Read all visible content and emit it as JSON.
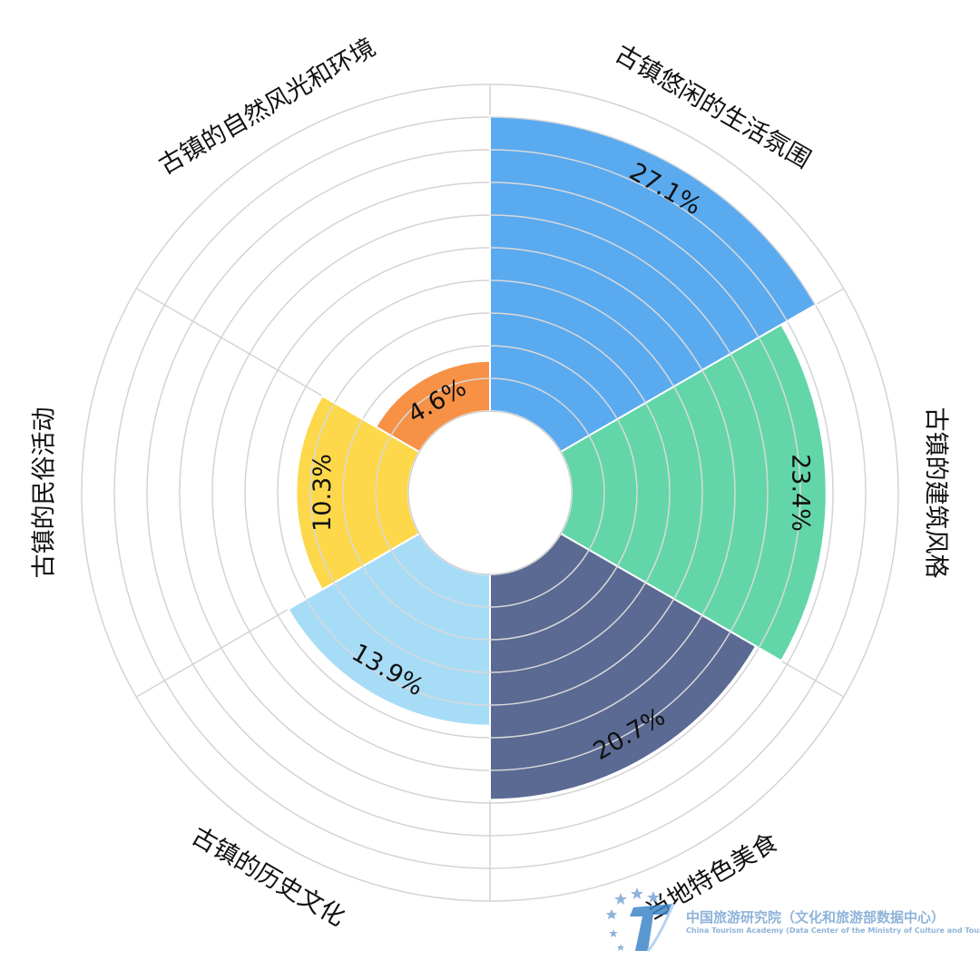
{
  "chart_data": {
    "type": "nightingale-rose",
    "categories": [
      "古镇悠闲的生活氛围",
      "古镇的建筑风格",
      "当地特色美食",
      "古镇的历史文化",
      "古镇的民俗活动",
      "古镇的自然风光和环境"
    ],
    "values": [
      27.1,
      23.4,
      20.7,
      13.9,
      10.3,
      4.6
    ],
    "value_labels": [
      "27.1%",
      "23.4%",
      "20.7%",
      "13.9%",
      "10.3%",
      "4.6%"
    ],
    "colors": [
      "#5aaaf0",
      "#62d6a8",
      "#5b6a93",
      "#a7dcf7",
      "#fcd84a",
      "#f69146"
    ],
    "rmax": 30,
    "grid": true
  },
  "watermark": {
    "title": "中国旅游研究院（文化和旅游部数据中心）",
    "subtitle": "China Tourism Academy (Data Center of the Ministry of Culture and Tourism)",
    "icon": "academy-logo-icon"
  }
}
